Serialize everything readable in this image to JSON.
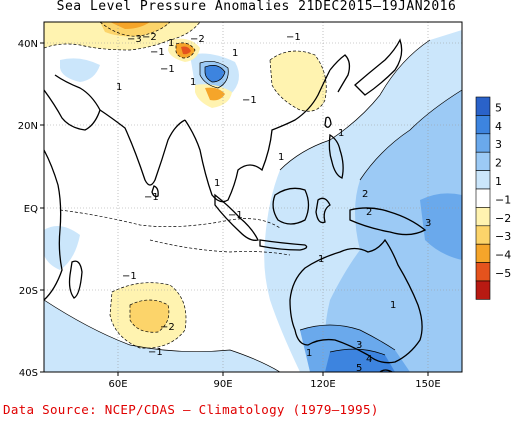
{
  "title": "Sea Level Pressure Anomalies 21DEC2015–19JAN2016",
  "source": {
    "label": "Data Source:",
    "text": "NCEP/CDAS – Climatology (1979–1995)"
  },
  "map": {
    "lon_range": [
      30,
      160
    ],
    "lat_range": [
      -40,
      45
    ],
    "lon_ticks": [
      "60E",
      "90E",
      "120E",
      "150E"
    ],
    "lat_ticks": [
      "40N",
      "20N",
      "EQ",
      "20S",
      "40S"
    ]
  },
  "legend": {
    "levels": [
      {
        "label": "5",
        "color": "#2a62c9"
      },
      {
        "label": "4",
        "color": "#3d84df"
      },
      {
        "label": "3",
        "color": "#6aa9ec"
      },
      {
        "label": "2",
        "color": "#9ccaf5"
      },
      {
        "label": "1",
        "color": "#cbe6fb"
      },
      {
        "label": "",
        "color": "#ffffff"
      },
      {
        "label": "−1",
        "color": "#fff3b0"
      },
      {
        "label": "−2",
        "color": "#fcd46a"
      },
      {
        "label": "−3",
        "color": "#f5a52a"
      },
      {
        "label": "−4",
        "color": "#e5531d"
      },
      {
        "label": "−5",
        "color": "#b81a12"
      }
    ]
  },
  "contour_labels": [
    {
      "text": "−3"
    },
    {
      "text": "−2"
    },
    {
      "text": "−1"
    },
    {
      "text": "1"
    },
    {
      "text": "−1"
    },
    {
      "text": "−2"
    },
    {
      "text": "−1"
    },
    {
      "text": "1"
    },
    {
      "text": "1"
    },
    {
      "text": "1"
    },
    {
      "text": "−1"
    },
    {
      "text": "1"
    },
    {
      "text": "2"
    },
    {
      "text": "2"
    },
    {
      "text": "−1"
    },
    {
      "text": "−1"
    },
    {
      "text": "−1"
    },
    {
      "text": "−2"
    },
    {
      "text": "−1"
    },
    {
      "text": "1"
    },
    {
      "text": "1"
    },
    {
      "text": "3"
    },
    {
      "text": "4"
    },
    {
      "text": "5"
    },
    {
      "text": "1"
    },
    {
      "text": "1"
    },
    {
      "text": "3"
    },
    {
      "text": "1"
    }
  ]
}
